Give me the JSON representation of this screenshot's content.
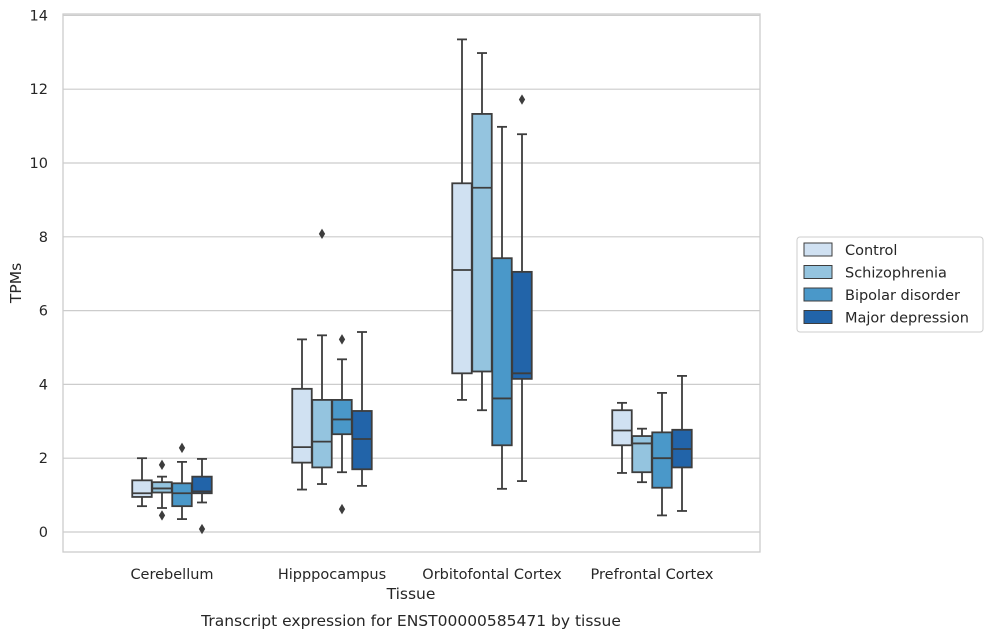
{
  "chart_data": {
    "type": "box",
    "xlabel": "Tissue",
    "ylabel": "TPMs",
    "caption": "Transcript expression for ENST00000585471 by tissue",
    "ylim": [
      -0.55,
      14.05
    ],
    "yticks": [
      0,
      2,
      4,
      6,
      8,
      10,
      12,
      14
    ],
    "grid": "horizontal",
    "legend_position": "right",
    "categories": [
      "Cerebellum",
      "Hipppocampus",
      "Orbitofontal Cortex",
      "Prefrontal Cortex"
    ],
    "series": [
      {
        "name": "Control",
        "color": "#d0e1f2",
        "boxes": [
          {
            "whislo": 0.7,
            "q1": 0.95,
            "med": 1.05,
            "q3": 1.4,
            "whishi": 2.0,
            "fliers": []
          },
          {
            "whislo": 1.15,
            "q1": 1.88,
            "med": 2.3,
            "q3": 3.88,
            "whishi": 5.22,
            "fliers": []
          },
          {
            "whislo": 3.58,
            "q1": 4.3,
            "med": 7.1,
            "q3": 9.45,
            "whishi": 13.35,
            "fliers": []
          },
          {
            "whislo": 1.6,
            "q1": 2.35,
            "med": 2.75,
            "q3": 3.3,
            "whishi": 3.5,
            "fliers": []
          }
        ]
      },
      {
        "name": "Schizophrenia",
        "color": "#94c4df",
        "boxes": [
          {
            "whislo": 0.65,
            "q1": 1.07,
            "med": 1.18,
            "q3": 1.35,
            "whishi": 1.5,
            "fliers": [
              1.82,
              0.45
            ]
          },
          {
            "whislo": 1.3,
            "q1": 1.75,
            "med": 2.45,
            "q3": 3.58,
            "whishi": 5.33,
            "fliers": [
              8.08
            ]
          },
          {
            "whislo": 3.3,
            "q1": 4.35,
            "med": 9.33,
            "q3": 11.33,
            "whishi": 12.98,
            "fliers": []
          },
          {
            "whislo": 1.35,
            "q1": 1.62,
            "med": 2.4,
            "q3": 2.6,
            "whishi": 2.8,
            "fliers": []
          }
        ]
      },
      {
        "name": "Bipolar disorder",
        "color": "#4a98c9",
        "boxes": [
          {
            "whislo": 0.35,
            "q1": 0.7,
            "med": 1.05,
            "q3": 1.32,
            "whishi": 1.9,
            "fliers": [
              2.28
            ]
          },
          {
            "whislo": 1.62,
            "q1": 2.65,
            "med": 3.05,
            "q3": 3.58,
            "whishi": 4.68,
            "fliers": [
              5.22,
              0.62
            ]
          },
          {
            "whislo": 1.17,
            "q1": 2.35,
            "med": 3.62,
            "q3": 7.42,
            "whishi": 10.98,
            "fliers": []
          },
          {
            "whislo": 0.45,
            "q1": 1.2,
            "med": 2.0,
            "q3": 2.7,
            "whishi": 3.77,
            "fliers": []
          }
        ]
      },
      {
        "name": "Major depression",
        "color": "#2264a9",
        "boxes": [
          {
            "whislo": 0.8,
            "q1": 1.05,
            "med": 1.1,
            "q3": 1.5,
            "whishi": 1.98,
            "fliers": [
              0.08
            ]
          },
          {
            "whislo": 1.25,
            "q1": 1.7,
            "med": 2.52,
            "q3": 3.28,
            "whishi": 5.42,
            "fliers": []
          },
          {
            "whislo": 1.38,
            "q1": 4.15,
            "med": 4.3,
            "q3": 7.05,
            "whishi": 10.78,
            "fliers": [
              11.72
            ]
          },
          {
            "whislo": 0.57,
            "q1": 1.75,
            "med": 2.25,
            "q3": 2.77,
            "whishi": 4.23,
            "fliers": []
          }
        ]
      }
    ]
  }
}
